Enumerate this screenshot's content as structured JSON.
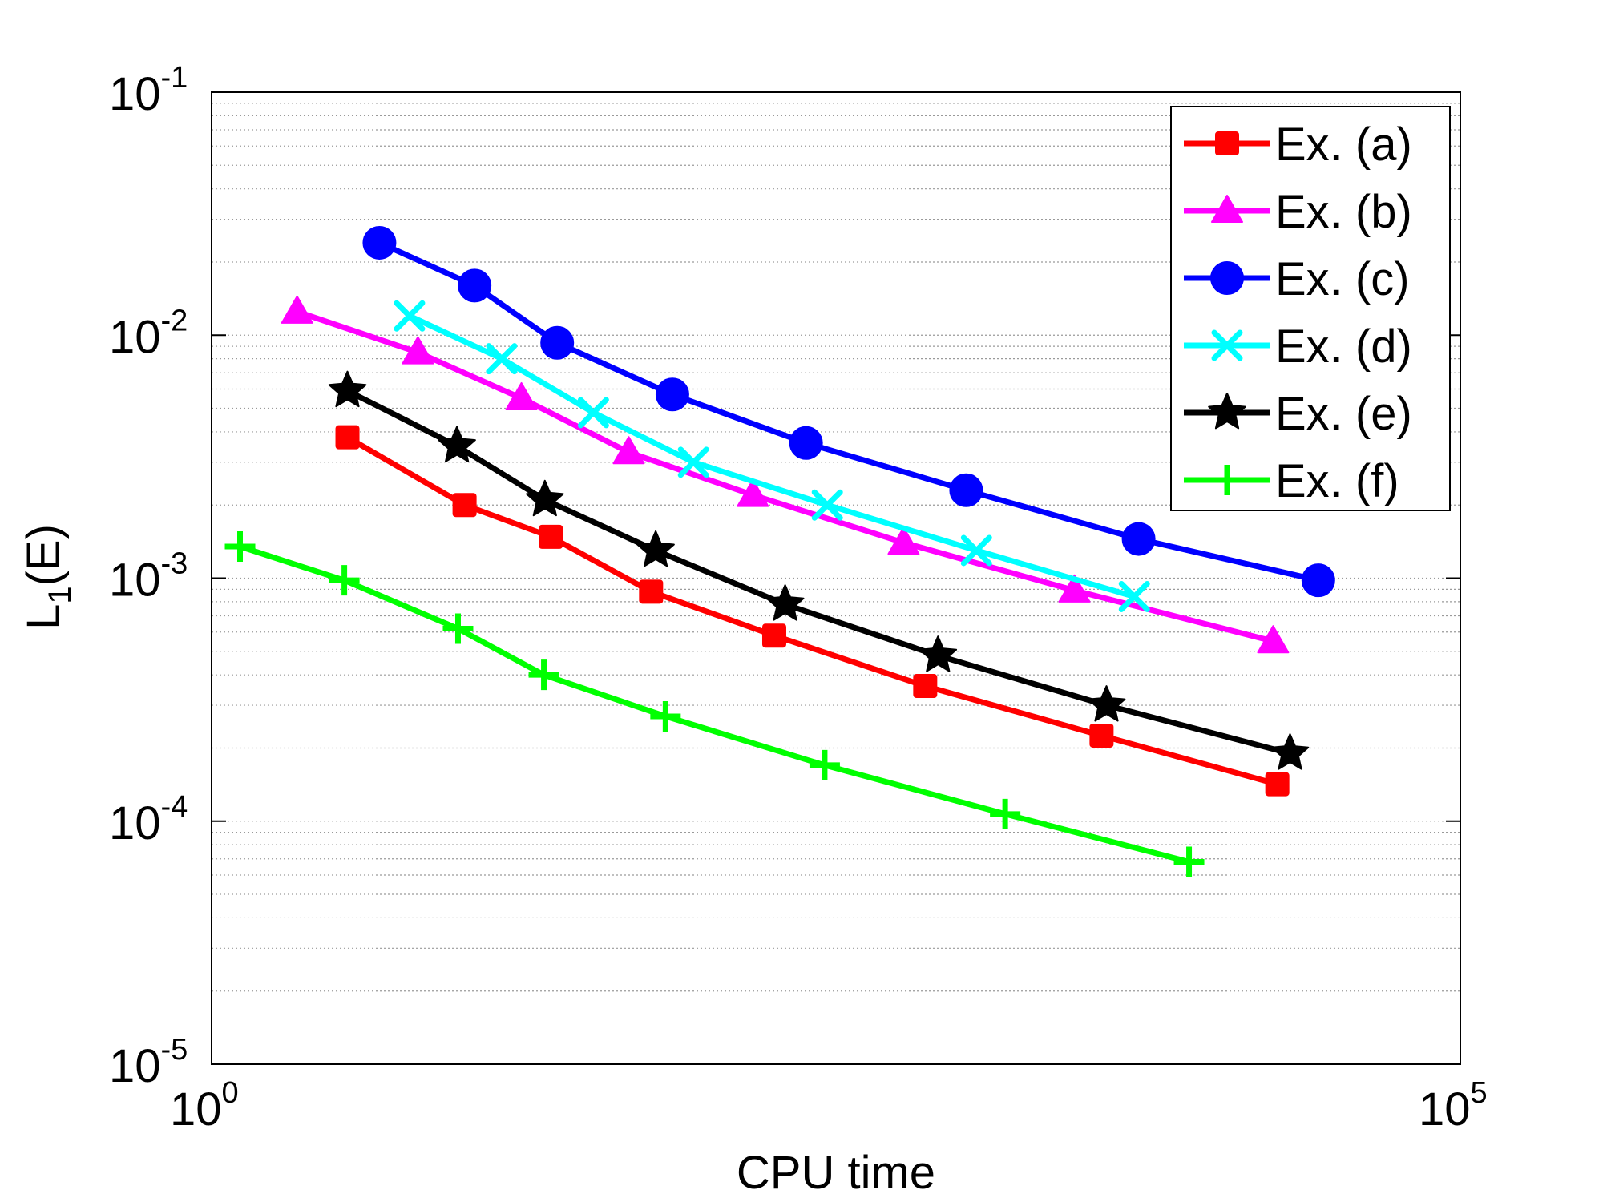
{
  "chart_data": {
    "type": "line",
    "title": "",
    "xlabel": "CPU time",
    "ylabel": {
      "main": "L",
      "sub": "1",
      "rest": "(E)"
    },
    "xscale": "log",
    "yscale": "log",
    "xlim": [
      1,
      100000
    ],
    "ylim": [
      1e-05,
      0.1
    ],
    "grid": {
      "x_major": false,
      "y_minor": true
    },
    "legend_position": "top-right",
    "xticks": [
      {
        "value": 1,
        "base": "10",
        "exp": "0"
      },
      {
        "value": 100000,
        "base": "10",
        "exp": "5"
      }
    ],
    "yticks": [
      {
        "value": 0.1,
        "base": "10",
        "exp": "-1"
      },
      {
        "value": 0.01,
        "base": "10",
        "exp": "-2"
      },
      {
        "value": 0.001,
        "base": "10",
        "exp": "-3"
      },
      {
        "value": 0.0001,
        "base": "10",
        "exp": "-4"
      },
      {
        "value": 1e-05,
        "base": "10",
        "exp": "-5"
      }
    ],
    "series": [
      {
        "name": "Ex. (a)",
        "color": "#ff0000",
        "marker": "square",
        "x": [
          3.5,
          10.3,
          22.8,
          57.5,
          179,
          720,
          3660,
          18500
        ],
        "y": [
          0.0038,
          0.002,
          0.00148,
          0.00088,
          0.00058,
          0.00036,
          0.000225,
          0.000142
        ]
      },
      {
        "name": "Ex. (b)",
        "color": "#ff00ff",
        "marker": "triangle",
        "x": [
          2.2,
          6.7,
          17.4,
          46.8,
          147,
          590,
          2850,
          17800
        ],
        "y": [
          0.0125,
          0.0085,
          0.0055,
          0.0033,
          0.0022,
          0.0014,
          0.00089,
          0.00055
        ]
      },
      {
        "name": "Ex. (c)",
        "color": "#0000ff",
        "marker": "circle",
        "x": [
          4.7,
          11.3,
          24.2,
          70,
          240,
          1050,
          5150,
          27000
        ],
        "y": [
          0.024,
          0.016,
          0.0093,
          0.0057,
          0.0036,
          0.0023,
          0.00145,
          0.00098
        ]
      },
      {
        "name": "Ex. (d)",
        "color": "#00ffff",
        "marker": "x",
        "x": [
          6.2,
          14.5,
          33.8,
          85,
          292,
          1155,
          4950
        ],
        "y": [
          0.012,
          0.008,
          0.0048,
          0.003,
          0.002,
          0.0013,
          0.00084
        ]
      },
      {
        "name": "Ex. (e)",
        "color": "#000000",
        "marker": "star",
        "x": [
          3.5,
          9.6,
          21.6,
          60,
          198,
          810,
          3830,
          20800
        ],
        "y": [
          0.0059,
          0.0035,
          0.0021,
          0.0013,
          0.00078,
          0.00048,
          0.0003,
          0.00019
        ]
      },
      {
        "name": "Ex. (f)",
        "color": "#00ff00",
        "marker": "plus",
        "x": [
          1.3,
          3.4,
          9.7,
          21.4,
          65.7,
          285,
          1505,
          8200
        ],
        "y": [
          0.00135,
          0.00098,
          0.00062,
          0.0004,
          0.00027,
          0.00017,
          0.000107,
          6.8e-05
        ]
      }
    ]
  }
}
